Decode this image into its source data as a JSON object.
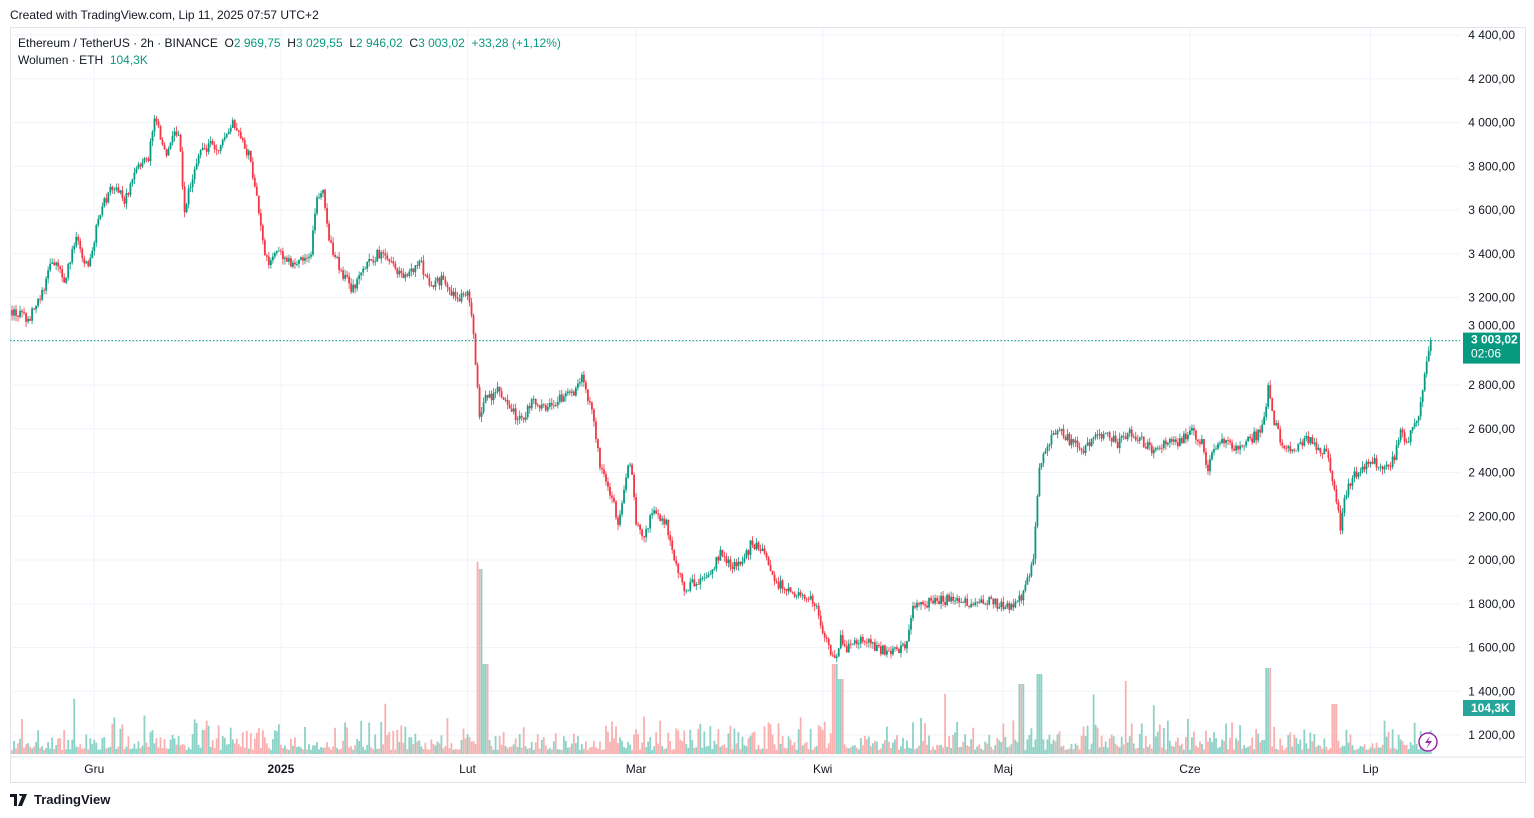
{
  "header": {
    "created": "Created with TradingView.com, Lip 11, 2025 07:57 UTC+2"
  },
  "legend": {
    "symbol": "Ethereum / TetherUS · 2h · BINANCE",
    "o_label": "O",
    "o": "2 969,75",
    "h_label": "H",
    "h": "3 029,55",
    "l_label": "L",
    "l": "2 946,02",
    "c_label": "C",
    "c": "3 003,02",
    "change": "+33,28 (+1,12%)",
    "volume_label": "Wolumen · ETH",
    "volume": "104,3K"
  },
  "price_tag": {
    "price": "3 003,02",
    "countdown": "02:06"
  },
  "volume_tag": "104,3K",
  "footer": {
    "brand": "TradingView"
  },
  "colors": {
    "up": "#089981",
    "down": "#f23645",
    "up_vol": "#7fcdc1",
    "down_vol": "#f7a9a7"
  },
  "chart_data": {
    "type": "candlestick",
    "title": "Ethereum / TetherUS · 2h · BINANCE",
    "ylim": [
      1200,
      4400
    ],
    "yticks": [
      "4 400,00",
      "4 200,00",
      "4 000,00",
      "3 800,00",
      "3 600,00",
      "3 400,00",
      "3 200,00",
      "3 000,00",
      "2 800,00",
      "2 600,00",
      "2 400,00",
      "2 200,00",
      "2 000,00",
      "1 800,00",
      "1 600,00",
      "1 400,00",
      "1 200,00"
    ],
    "ytick_values": [
      4400,
      4200,
      4000,
      3800,
      3600,
      3400,
      3200,
      3000,
      2800,
      2600,
      2400,
      2200,
      2000,
      1800,
      1600,
      1400,
      1200
    ],
    "xticks": [
      {
        "label": "Gru",
        "day": 14
      },
      {
        "label": "2025",
        "day": 45
      },
      {
        "label": "Lut",
        "day": 76
      },
      {
        "label": "Mar",
        "day": 104
      },
      {
        "label": "Kwi",
        "day": 135
      },
      {
        "label": "Maj",
        "day": 165
      },
      {
        "label": "Cze",
        "day": 196
      },
      {
        "label": "Lip",
        "day": 226
      }
    ],
    "x_start": "2024-11-17",
    "x_unit": "days",
    "close_waypoints": [
      [
        0,
        3143
      ],
      [
        3,
        3097
      ],
      [
        5,
        3189
      ],
      [
        7,
        3371
      ],
      [
        9,
        3280
      ],
      [
        11,
        3463
      ],
      [
        13,
        3326
      ],
      [
        15,
        3600
      ],
      [
        17,
        3714
      ],
      [
        19,
        3646
      ],
      [
        21,
        3783
      ],
      [
        23,
        3829
      ],
      [
        24,
        4011
      ],
      [
        26,
        3874
      ],
      [
        28,
        3966
      ],
      [
        29,
        3600
      ],
      [
        31,
        3829
      ],
      [
        33,
        3897
      ],
      [
        35,
        3874
      ],
      [
        37,
        4011
      ],
      [
        38,
        3966
      ],
      [
        40,
        3829
      ],
      [
        41,
        3646
      ],
      [
        42,
        3463
      ],
      [
        43,
        3326
      ],
      [
        44,
        3417
      ],
      [
        46,
        3371
      ],
      [
        48,
        3350
      ],
      [
        50,
        3417
      ],
      [
        51,
        3646
      ],
      [
        52,
        3669
      ],
      [
        53,
        3463
      ],
      [
        55,
        3326
      ],
      [
        57,
        3234
      ],
      [
        58,
        3280
      ],
      [
        60,
        3371
      ],
      [
        62,
        3417
      ],
      [
        64,
        3326
      ],
      [
        66,
        3280
      ],
      [
        68,
        3371
      ],
      [
        70,
        3234
      ],
      [
        72,
        3300
      ],
      [
        74,
        3189
      ],
      [
        76,
        3234
      ],
      [
        77,
        3051
      ],
      [
        78,
        2640
      ],
      [
        79,
        2731
      ],
      [
        81,
        2777
      ],
      [
        83,
        2686
      ],
      [
        85,
        2640
      ],
      [
        87,
        2731
      ],
      [
        89,
        2686
      ],
      [
        91,
        2731
      ],
      [
        93,
        2754
      ],
      [
        95,
        2823
      ],
      [
        97,
        2640
      ],
      [
        98,
        2412
      ],
      [
        99,
        2366
      ],
      [
        101,
        2183
      ],
      [
        103,
        2457
      ],
      [
        104,
        2183
      ],
      [
        105,
        2092
      ],
      [
        107,
        2229
      ],
      [
        109,
        2160
      ],
      [
        111,
        1954
      ],
      [
        112,
        1863
      ],
      [
        114,
        1909
      ],
      [
        116,
        1931
      ],
      [
        118,
        2023
      ],
      [
        120,
        1977
      ],
      [
        122,
        2000
      ],
      [
        123,
        2069
      ],
      [
        125,
        2046
      ],
      [
        127,
        1909
      ],
      [
        129,
        1863
      ],
      [
        131,
        1840
      ],
      [
        133,
        1817
      ],
      [
        134,
        1794
      ],
      [
        135,
        1680
      ],
      [
        136,
        1589
      ],
      [
        137,
        1543
      ],
      [
        138,
        1634
      ],
      [
        139,
        1589
      ],
      [
        141,
        1634
      ],
      [
        143,
        1611
      ],
      [
        145,
        1589
      ],
      [
        147,
        1589
      ],
      [
        149,
        1611
      ],
      [
        150,
        1771
      ],
      [
        152,
        1794
      ],
      [
        154,
        1817
      ],
      [
        156,
        1817
      ],
      [
        158,
        1794
      ],
      [
        160,
        1817
      ],
      [
        162,
        1817
      ],
      [
        164,
        1794
      ],
      [
        166,
        1794
      ],
      [
        168,
        1830
      ],
      [
        170,
        2000
      ],
      [
        171,
        2412
      ],
      [
        172,
        2503
      ],
      [
        174,
        2594
      ],
      [
        176,
        2549
      ],
      [
        178,
        2503
      ],
      [
        180,
        2549
      ],
      [
        182,
        2594
      ],
      [
        184,
        2526
      ],
      [
        186,
        2594
      ],
      [
        188,
        2549
      ],
      [
        190,
        2503
      ],
      [
        192,
        2549
      ],
      [
        194,
        2526
      ],
      [
        196,
        2594
      ],
      [
        198,
        2549
      ],
      [
        199,
        2412
      ],
      [
        200,
        2503
      ],
      [
        202,
        2549
      ],
      [
        204,
        2503
      ],
      [
        206,
        2549
      ],
      [
        208,
        2594
      ],
      [
        209,
        2777
      ],
      [
        210,
        2640
      ],
      [
        211,
        2549
      ],
      [
        213,
        2503
      ],
      [
        215,
        2549
      ],
      [
        217,
        2526
      ],
      [
        219,
        2480
      ],
      [
        220,
        2320
      ],
      [
        221,
        2160
      ],
      [
        222,
        2320
      ],
      [
        224,
        2412
      ],
      [
        226,
        2457
      ],
      [
        228,
        2435
      ],
      [
        230,
        2457
      ],
      [
        231,
        2594
      ],
      [
        232,
        2549
      ],
      [
        234,
        2640
      ],
      [
        235,
        2869
      ],
      [
        236,
        3003
      ]
    ],
    "volume_spikes": [
      [
        78,
        1850
      ],
      [
        79,
        900
      ],
      [
        137,
        900
      ],
      [
        138,
        750
      ],
      [
        168,
        700
      ],
      [
        171,
        800
      ],
      [
        209,
        860
      ],
      [
        220,
        500
      ]
    ],
    "last_price": 3003.02
  }
}
